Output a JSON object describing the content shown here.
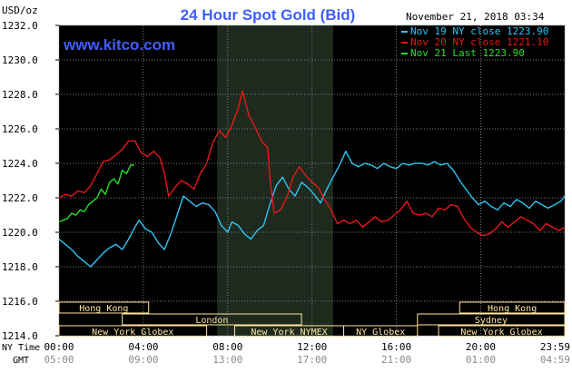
{
  "header": {
    "unit_label": "USD/oz",
    "title": "24 Hour Spot Gold (Bid)",
    "datetime": "November 21, 2018 03:34",
    "watermark": "www.kitco.com"
  },
  "colors": {
    "background": "#000000",
    "title": "#3f5fff",
    "watermark": "#3f5fff",
    "grid": "#7a7a7a",
    "shade": "#1e2a1e",
    "session_box": "#ffe7a0",
    "nov19": "#2ec4f2",
    "nov20": "#e81818",
    "nov21": "#28e028"
  },
  "footer": {
    "ny_label": "NY Time",
    "gmt_label": "GMT",
    "ny_ticks": [
      "00:00",
      "04:00",
      "08:00",
      "12:00",
      "16:00",
      "20:00",
      "23:59"
    ],
    "gmt_ticks": [
      "05:00",
      "09:00",
      "13:00",
      "17:00",
      "21:00",
      "01:00",
      "04:59"
    ]
  },
  "sessions": {
    "row1": [
      {
        "label": "Hong Kong",
        "start": 0.0,
        "end": 4.25
      },
      {
        "label": "Hong Kong",
        "start": 19.0,
        "end": 23.983
      }
    ],
    "row2": [
      {
        "label": "London",
        "start": 3.0,
        "end": 11.5
      },
      {
        "label": "Sydney",
        "start": 17.0,
        "end": 23.983
      }
    ],
    "row3": [
      {
        "label": "New York Globex",
        "start": 0.0,
        "end": 7.0
      },
      {
        "label": "New York NYMEX",
        "start": 8.33,
        "end": 13.5
      },
      {
        "label": "NY Globex",
        "start": 13.5,
        "end": 17.0
      },
      {
        "label": "New York Globex",
        "start": 18.0,
        "end": 23.983
      }
    ]
  },
  "chart_data": {
    "type": "line",
    "title": "24 Hour Spot Gold (Bid)",
    "ylabel": "USD/oz",
    "xlabel": "NY Time",
    "ylim": [
      1214.0,
      1232.0
    ],
    "y_ticks": [
      "1232.0",
      "1230.0",
      "1228.0",
      "1226.0",
      "1224.0",
      "1222.0",
      "1220.0",
      "1218.0",
      "1216.0",
      "1214.0"
    ],
    "xlim": [
      0,
      23.983
    ],
    "grid": true,
    "shaded_range": [
      7.5,
      13.0
    ],
    "legend_position": "top-right",
    "series": [
      {
        "name": "Nov 19 NY close 1223.90",
        "color": "#2ec4f2",
        "points": [
          [
            0.0,
            1219.6
          ],
          [
            0.3,
            1219.3
          ],
          [
            0.6,
            1219.0
          ],
          [
            0.9,
            1218.6
          ],
          [
            1.2,
            1218.3
          ],
          [
            1.5,
            1218.0
          ],
          [
            1.8,
            1218.4
          ],
          [
            2.1,
            1218.8
          ],
          [
            2.4,
            1219.1
          ],
          [
            2.7,
            1219.3
          ],
          [
            3.0,
            1219.0
          ],
          [
            3.3,
            1219.6
          ],
          [
            3.6,
            1220.3
          ],
          [
            3.8,
            1220.7
          ],
          [
            4.1,
            1220.2
          ],
          [
            4.4,
            1220.0
          ],
          [
            4.7,
            1219.4
          ],
          [
            5.0,
            1219.0
          ],
          [
            5.3,
            1219.9
          ],
          [
            5.6,
            1221.0
          ],
          [
            5.9,
            1222.1
          ],
          [
            6.2,
            1221.8
          ],
          [
            6.5,
            1221.5
          ],
          [
            6.8,
            1221.7
          ],
          [
            7.1,
            1221.6
          ],
          [
            7.4,
            1221.2
          ],
          [
            7.7,
            1220.4
          ],
          [
            8.0,
            1220.0
          ],
          [
            8.2,
            1220.6
          ],
          [
            8.5,
            1220.4
          ],
          [
            8.8,
            1219.9
          ],
          [
            9.1,
            1219.6
          ],
          [
            9.4,
            1220.1
          ],
          [
            9.7,
            1220.4
          ],
          [
            10.0,
            1221.6
          ],
          [
            10.3,
            1222.7
          ],
          [
            10.6,
            1223.2
          ],
          [
            10.9,
            1222.5
          ],
          [
            11.2,
            1222.1
          ],
          [
            11.5,
            1222.9
          ],
          [
            11.8,
            1222.6
          ],
          [
            12.1,
            1222.2
          ],
          [
            12.4,
            1221.7
          ],
          [
            12.7,
            1222.5
          ],
          [
            13.0,
            1223.2
          ],
          [
            13.3,
            1223.9
          ],
          [
            13.6,
            1224.7
          ],
          [
            13.9,
            1224.0
          ],
          [
            14.2,
            1223.8
          ],
          [
            14.5,
            1224.0
          ],
          [
            14.8,
            1223.9
          ],
          [
            15.1,
            1223.7
          ],
          [
            15.4,
            1224.0
          ],
          [
            15.7,
            1223.8
          ],
          [
            16.0,
            1223.7
          ],
          [
            16.3,
            1224.0
          ],
          [
            16.6,
            1223.9
          ],
          [
            16.9,
            1224.0
          ],
          [
            17.2,
            1224.0
          ],
          [
            17.5,
            1223.9
          ],
          [
            17.8,
            1224.1
          ],
          [
            18.1,
            1223.9
          ],
          [
            18.4,
            1224.0
          ],
          [
            18.7,
            1223.6
          ],
          [
            19.0,
            1223.0
          ],
          [
            19.3,
            1222.5
          ],
          [
            19.6,
            1222.0
          ],
          [
            19.9,
            1221.6
          ],
          [
            20.2,
            1221.8
          ],
          [
            20.5,
            1221.5
          ],
          [
            20.8,
            1221.3
          ],
          [
            21.1,
            1221.7
          ],
          [
            21.4,
            1221.5
          ],
          [
            21.7,
            1221.9
          ],
          [
            22.0,
            1221.7
          ],
          [
            22.3,
            1221.4
          ],
          [
            22.6,
            1221.8
          ],
          [
            22.9,
            1221.6
          ],
          [
            23.2,
            1221.4
          ],
          [
            23.5,
            1221.6
          ],
          [
            23.8,
            1221.8
          ],
          [
            23.98,
            1222.1
          ]
        ]
      },
      {
        "name": "Nov 20 NY close 1221.10",
        "color": "#e81818",
        "points": [
          [
            0.0,
            1222.0
          ],
          [
            0.3,
            1222.2
          ],
          [
            0.6,
            1222.1
          ],
          [
            0.9,
            1222.4
          ],
          [
            1.2,
            1222.3
          ],
          [
            1.5,
            1222.7
          ],
          [
            1.8,
            1223.4
          ],
          [
            2.1,
            1224.1
          ],
          [
            2.4,
            1224.2
          ],
          [
            2.7,
            1224.5
          ],
          [
            3.0,
            1224.8
          ],
          [
            3.3,
            1225.3
          ],
          [
            3.6,
            1225.3
          ],
          [
            3.9,
            1224.6
          ],
          [
            4.2,
            1224.4
          ],
          [
            4.5,
            1224.7
          ],
          [
            4.8,
            1224.3
          ],
          [
            5.0,
            1223.4
          ],
          [
            5.2,
            1222.1
          ],
          [
            5.5,
            1222.6
          ],
          [
            5.8,
            1223.0
          ],
          [
            6.1,
            1222.8
          ],
          [
            6.4,
            1222.5
          ],
          [
            6.7,
            1223.4
          ],
          [
            7.0,
            1224.0
          ],
          [
            7.3,
            1225.2
          ],
          [
            7.6,
            1225.9
          ],
          [
            7.9,
            1225.5
          ],
          [
            8.2,
            1226.2
          ],
          [
            8.5,
            1227.2
          ],
          [
            8.7,
            1228.2
          ],
          [
            9.0,
            1226.8
          ],
          [
            9.3,
            1226.1
          ],
          [
            9.6,
            1225.3
          ],
          [
            9.9,
            1224.9
          ],
          [
            10.0,
            1223.2
          ],
          [
            10.2,
            1221.1
          ],
          [
            10.5,
            1221.3
          ],
          [
            10.8,
            1222.0
          ],
          [
            11.1,
            1223.2
          ],
          [
            11.4,
            1223.8
          ],
          [
            11.7,
            1223.3
          ],
          [
            12.0,
            1222.9
          ],
          [
            12.3,
            1222.6
          ],
          [
            12.6,
            1221.9
          ],
          [
            12.9,
            1221.3
          ],
          [
            13.2,
            1220.5
          ],
          [
            13.5,
            1220.7
          ],
          [
            13.8,
            1220.5
          ],
          [
            14.1,
            1220.7
          ],
          [
            14.4,
            1220.3
          ],
          [
            14.7,
            1220.6
          ],
          [
            15.0,
            1220.9
          ],
          [
            15.3,
            1220.6
          ],
          [
            15.6,
            1220.7
          ],
          [
            15.9,
            1221.0
          ],
          [
            16.2,
            1221.3
          ],
          [
            16.5,
            1221.8
          ],
          [
            16.8,
            1221.1
          ],
          [
            17.1,
            1221.0
          ],
          [
            17.4,
            1221.1
          ],
          [
            17.7,
            1220.9
          ],
          [
            18.0,
            1221.4
          ],
          [
            18.3,
            1221.3
          ],
          [
            18.6,
            1221.6
          ],
          [
            18.9,
            1221.5
          ],
          [
            19.2,
            1220.8
          ],
          [
            19.5,
            1220.3
          ],
          [
            19.8,
            1220.0
          ],
          [
            20.1,
            1219.8
          ],
          [
            20.4,
            1219.9
          ],
          [
            20.7,
            1220.2
          ],
          [
            21.0,
            1220.6
          ],
          [
            21.3,
            1220.3
          ],
          [
            21.6,
            1220.6
          ],
          [
            21.9,
            1220.9
          ],
          [
            22.2,
            1220.7
          ],
          [
            22.5,
            1220.5
          ],
          [
            22.8,
            1220.1
          ],
          [
            23.1,
            1220.5
          ],
          [
            23.4,
            1220.3
          ],
          [
            23.7,
            1220.1
          ],
          [
            23.98,
            1220.3
          ]
        ]
      },
      {
        "name": "Nov 21 Last 1223.90",
        "color": "#28e028",
        "points": [
          [
            0.0,
            1220.6
          ],
          [
            0.2,
            1220.7
          ],
          [
            0.4,
            1220.8
          ],
          [
            0.6,
            1221.1
          ],
          [
            0.8,
            1221.0
          ],
          [
            1.0,
            1221.3
          ],
          [
            1.2,
            1221.2
          ],
          [
            1.4,
            1221.6
          ],
          [
            1.6,
            1221.8
          ],
          [
            1.8,
            1222.0
          ],
          [
            2.0,
            1222.5
          ],
          [
            2.2,
            1222.2
          ],
          [
            2.4,
            1222.9
          ],
          [
            2.6,
            1223.1
          ],
          [
            2.8,
            1222.8
          ],
          [
            3.0,
            1223.6
          ],
          [
            3.2,
            1223.4
          ],
          [
            3.4,
            1223.9
          ],
          [
            3.57,
            1223.9
          ]
        ]
      }
    ]
  }
}
